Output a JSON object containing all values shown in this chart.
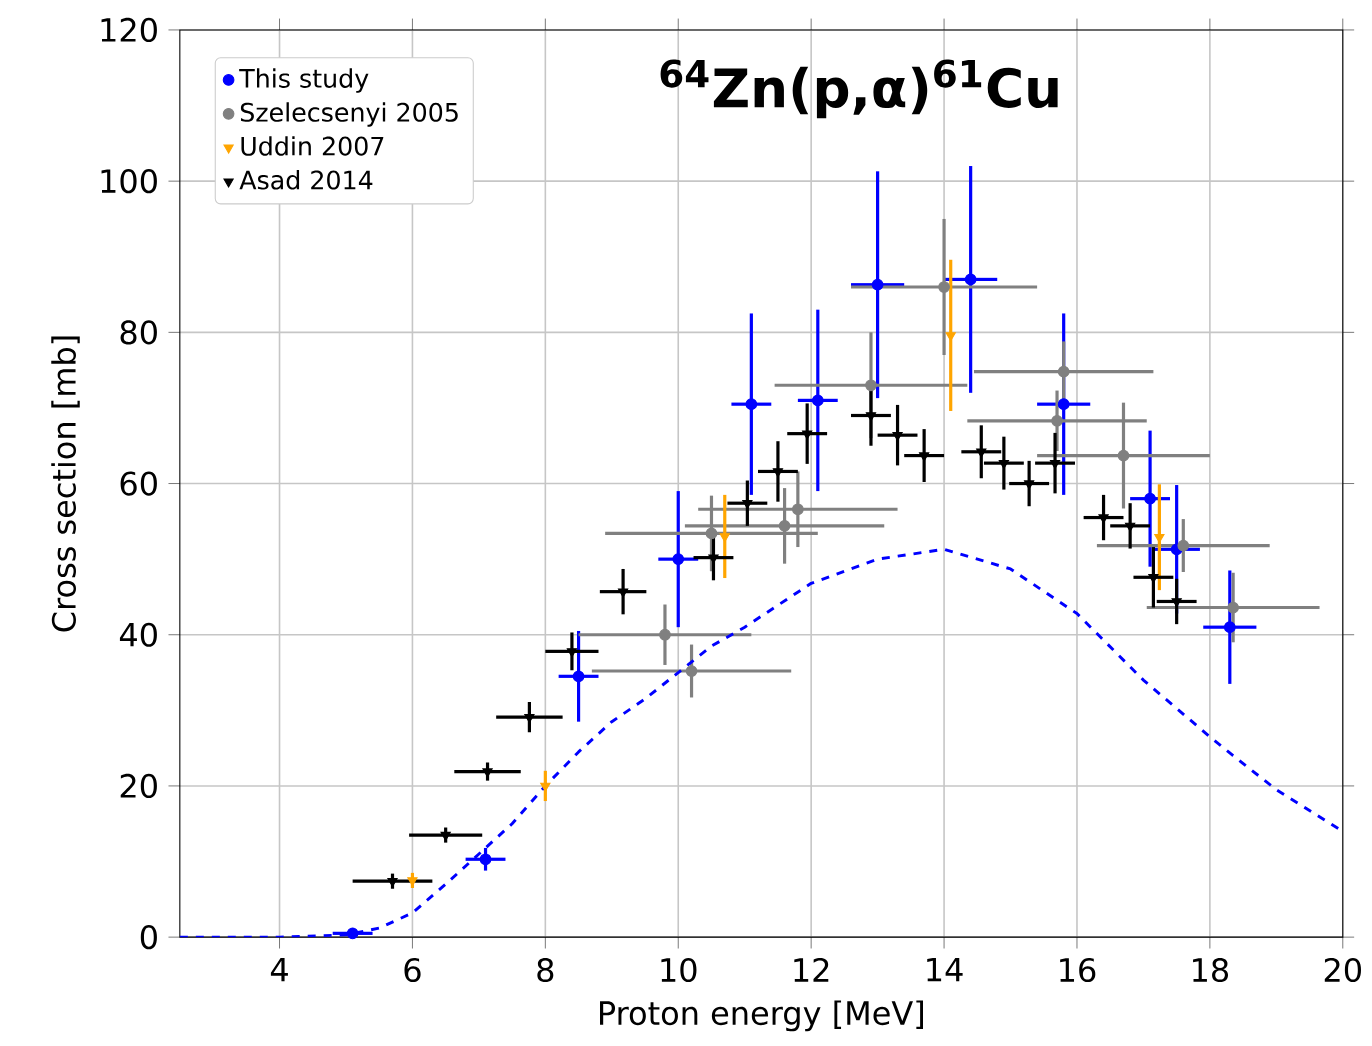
{
  "chart_data": {
    "type": "scatter",
    "title": "$^{64}$Zn(p,α)$^{61}$Cu",
    "xlabel": "Proton energy [MeV]",
    "ylabel": "Cross section [mb]",
    "xlim": [
      2.5,
      20
    ],
    "ylim": [
      0,
      120
    ],
    "xticks": [
      4,
      6,
      8,
      10,
      12,
      14,
      16,
      18,
      20
    ],
    "yticks": [
      0,
      20,
      40,
      60,
      80,
      100,
      120
    ],
    "grid": true,
    "legend": "top left",
    "series": [
      {
        "name": "This study",
        "color": "#0000ff",
        "marker": "circle",
        "x": [
          5.1,
          7.1,
          8.5,
          10.0,
          11.1,
          12.1,
          13.0,
          14.4,
          15.8,
          17.1,
          17.5,
          18.3
        ],
        "values": [
          0.5,
          10.3,
          34.5,
          50,
          70.5,
          71,
          86.3,
          87,
          70.5,
          58,
          51.3,
          41
        ],
        "errors": [
          0.3,
          1.5,
          6,
          9,
          12,
          12,
          15,
          15,
          12,
          9,
          8.5,
          7.5
        ],
        "xerrors": [
          0.3,
          0.3,
          0.3,
          0.3,
          0.3,
          0.3,
          0.4,
          0.4,
          0.4,
          0.3,
          0.35,
          0.4
        ]
      },
      {
        "name": "Szelecsenyi 2005",
        "color": "#808080",
        "marker": "circle",
        "x": [
          9.8,
          10.2,
          10.5,
          11.6,
          11.8,
          12.9,
          14.0,
          15.7,
          15.8,
          16.7,
          17.6,
          18.35
        ],
        "values": [
          40,
          35.2,
          53.4,
          54.4,
          56.6,
          73,
          86,
          68.3,
          74.8,
          63.7,
          51.8,
          43.6
        ],
        "errors": [
          4,
          3.5,
          5,
          5,
          5,
          7,
          9,
          4,
          4,
          7,
          3.5,
          4.6
        ],
        "xerrors": [
          1.3,
          1.5,
          1.6,
          1.5,
          1.5,
          1.45,
          1.4,
          1.35,
          1.35,
          1.3,
          1.3,
          1.3
        ]
      },
      {
        "name": "Uddin 2007",
        "color": "#ffa500",
        "marker": "triangle",
        "x": [
          6.0,
          8.0,
          10.7,
          14.1,
          17.24
        ],
        "values": [
          7.5,
          20,
          53,
          79.6,
          52.9
        ],
        "errors": [
          1,
          2,
          5.5,
          10,
          7
        ]
      },
      {
        "name": "Asad 2014",
        "color": "#000000",
        "marker": "triangle",
        "x": [
          5.7,
          6.5,
          7.13,
          7.76,
          8.4,
          9.17,
          10.53,
          11.04,
          11.5,
          11.94,
          12.9,
          13.3,
          13.7,
          14.56,
          14.9,
          15.28,
          15.67,
          16.4,
          16.8,
          17.15,
          17.5
        ],
        "values": [
          7.4,
          13.5,
          21.9,
          29.1,
          37.8,
          45.7,
          50.2,
          57.4,
          61.6,
          66.6,
          69,
          66.4,
          63.7,
          64.2,
          62.7,
          60,
          62.7,
          55.5,
          54.4,
          47.6,
          44.4
        ],
        "errors": [
          1,
          1,
          1.2,
          2,
          2.5,
          3,
          3,
          3,
          4,
          4,
          4,
          4,
          3.5,
          3.5,
          3.5,
          3,
          4,
          3,
          3,
          4,
          3
        ],
        "xerrors": [
          0.6,
          0.55,
          0.5,
          0.5,
          0.4,
          0.35,
          0.3,
          0.3,
          0.3,
          0.3,
          0.3,
          0.3,
          0.3,
          0.3,
          0.3,
          0.3,
          0.3,
          0.3,
          0.3,
          0.3,
          0.3
        ]
      },
      {
        "type": "line",
        "color": "#0000ff",
        "line_style": "dashed",
        "marker": "none",
        "x": [
          2.5,
          4,
          5,
          5.5,
          6,
          6.5,
          7,
          7.5,
          8,
          8.5,
          9,
          9.5,
          10,
          10.5,
          11,
          12,
          13,
          14,
          15,
          16,
          17,
          18,
          18.35,
          19,
          20
        ],
        "values": [
          0,
          0,
          0.3,
          1.2,
          3.2,
          7,
          11,
          15,
          20,
          24.5,
          28.5,
          31.5,
          35,
          38.5,
          41,
          46.8,
          50,
          51.3,
          48.7,
          42.8,
          34,
          26.5,
          24,
          19.5,
          14
        ]
      }
    ]
  }
}
